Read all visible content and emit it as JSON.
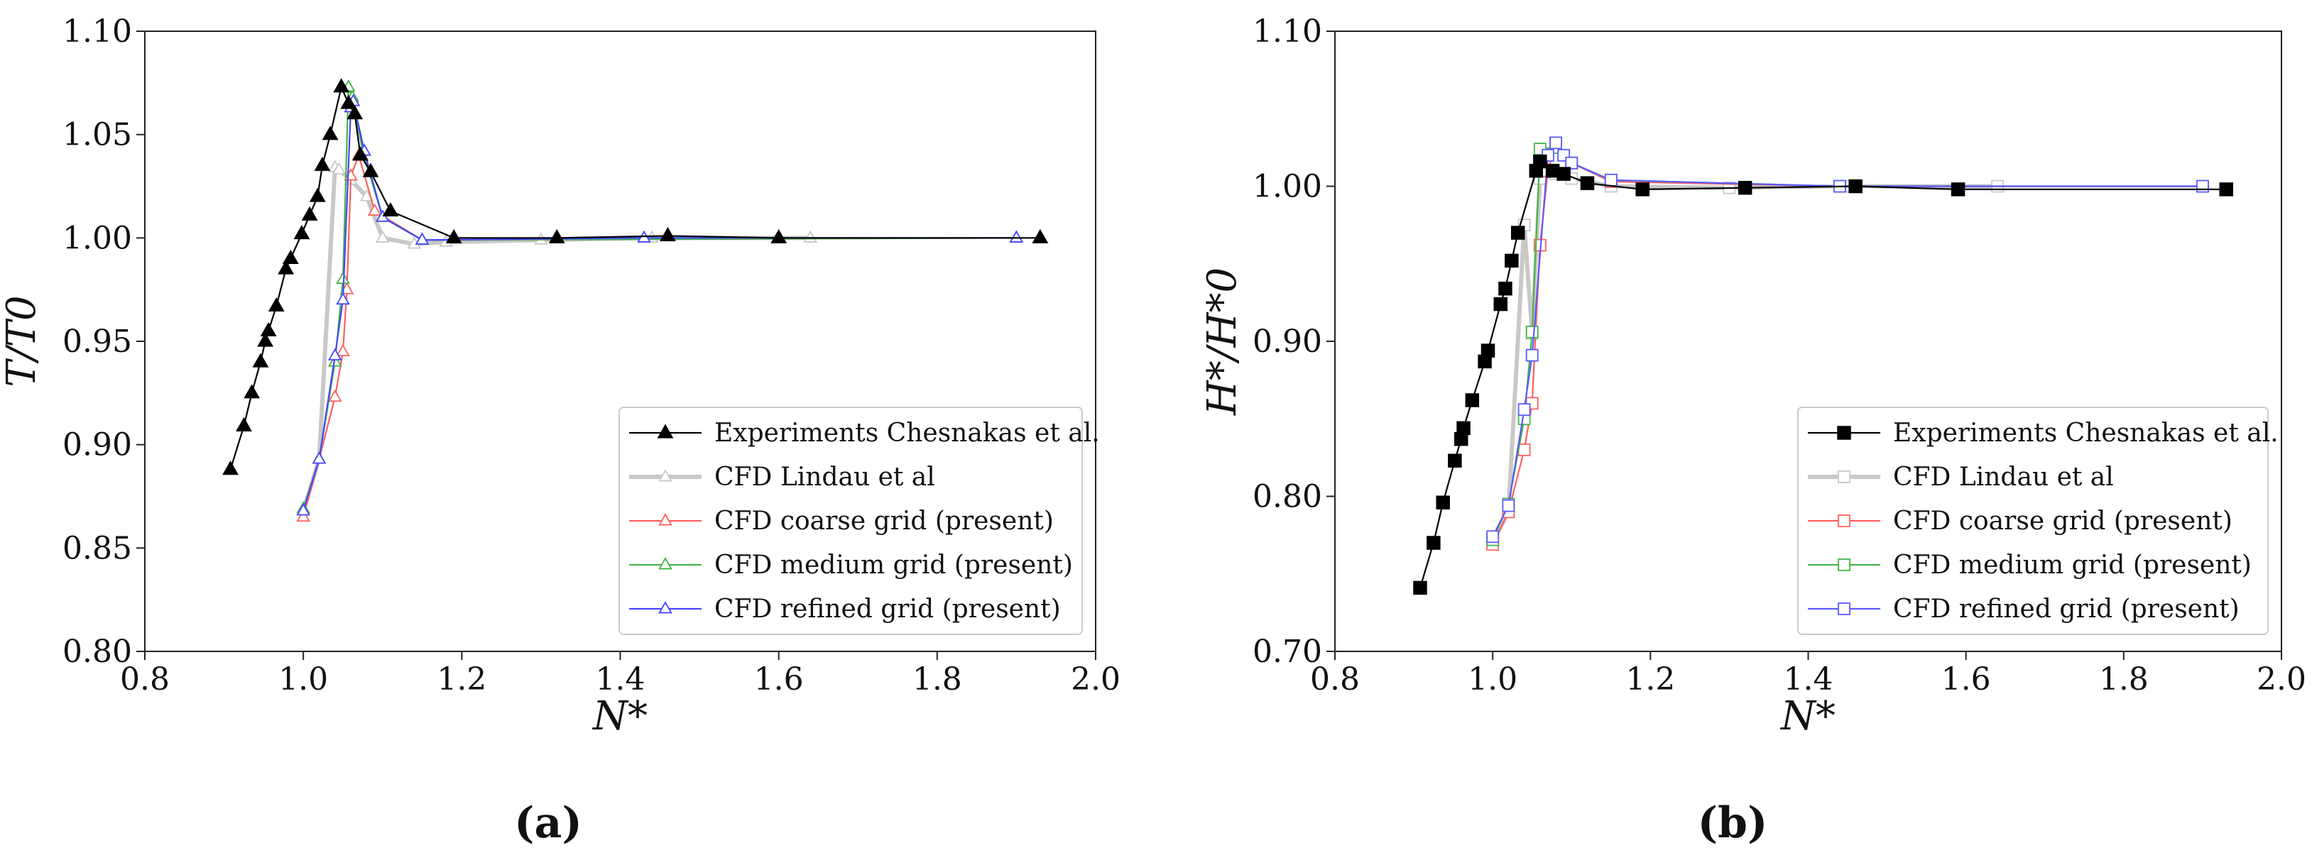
{
  "chart_data": [
    {
      "type": "line",
      "panel_label": "(a)",
      "xlabel": "N*",
      "ylabel": "T/T0",
      "xlim": [
        0.8,
        2.0
      ],
      "ylim": [
        0.8,
        1.1
      ],
      "xticks": [
        "0.8",
        "1.0",
        "1.2",
        "1.4",
        "1.6",
        "1.8",
        "2.0"
      ],
      "yticks": [
        "0.80",
        "0.85",
        "0.90",
        "0.95",
        "1.00",
        "1.05",
        "1.10"
      ],
      "legend_position": "lower-right",
      "series": [
        {
          "name": "Experiments Chesnakas et al.",
          "color": "#000000",
          "marker": "triangle-filled",
          "x": [
            0.908,
            0.925,
            0.935,
            0.946,
            0.952,
            0.956,
            0.966,
            0.978,
            0.984,
            0.998,
            1.008,
            1.018,
            1.024,
            1.034,
            1.048,
            1.057,
            1.065,
            1.072,
            1.085,
            1.11,
            1.19,
            1.32,
            1.46,
            1.6,
            1.93
          ],
          "y": [
            0.888,
            0.909,
            0.925,
            0.94,
            0.95,
            0.955,
            0.967,
            0.985,
            0.99,
            1.002,
            1.011,
            1.02,
            1.035,
            1.05,
            1.073,
            1.065,
            1.06,
            1.04,
            1.032,
            1.013,
            1.0,
            1.0,
            1.001,
            1.0,
            1.0
          ]
        },
        {
          "name": "CFD Lindau et al",
          "color": "#c8c8c8",
          "marker": "triangle-open",
          "x": [
            1.0,
            1.02,
            1.04,
            1.045,
            1.06,
            1.08,
            1.1,
            1.14,
            1.18,
            1.3,
            1.44,
            1.64
          ],
          "y": [
            0.868,
            0.893,
            1.034,
            1.033,
            1.028,
            1.02,
            1.0,
            0.997,
            0.998,
            0.999,
            1.0,
            1.0
          ]
        },
        {
          "name": "CFD coarse grid (present)",
          "color": "#ff6060",
          "marker": "triangle-open",
          "x": [
            1.0,
            1.02,
            1.04,
            1.05,
            1.055,
            1.06,
            1.07,
            1.09,
            1.15,
            1.9
          ],
          "y": [
            0.865,
            0.893,
            0.923,
            0.945,
            0.975,
            1.03,
            1.04,
            1.013,
            0.999,
            1.0
          ]
        },
        {
          "name": "CFD medium grid (present)",
          "color": "#46b446",
          "marker": "triangle-open",
          "x": [
            1.0,
            1.02,
            1.04,
            1.05,
            1.057,
            1.062,
            1.075,
            1.1,
            1.15,
            1.9
          ],
          "y": [
            0.869,
            0.893,
            0.94,
            0.98,
            1.073,
            1.068,
            1.042,
            1.01,
            0.999,
            1.0
          ]
        },
        {
          "name": "CFD refined grid (present)",
          "color": "#4646ff",
          "marker": "triangle-open",
          "x": [
            1.0,
            1.02,
            1.04,
            1.05,
            1.06,
            1.063,
            1.077,
            1.1,
            1.15,
            1.43,
            1.9
          ],
          "y": [
            0.868,
            0.893,
            0.943,
            0.97,
            1.063,
            1.066,
            1.042,
            1.01,
            0.999,
            1.0,
            1.0
          ]
        }
      ]
    },
    {
      "type": "line",
      "panel_label": "(b)",
      "xlabel": "N*",
      "ylabel": "H*/H*0",
      "xlim": [
        0.8,
        2.0
      ],
      "ylim": [
        0.7,
        1.1
      ],
      "xticks": [
        "0.8",
        "1.0",
        "1.2",
        "1.4",
        "1.6",
        "1.8",
        "2.0"
      ],
      "yticks": [
        "0.70",
        "0.80",
        "0.90",
        "1.00",
        "1.10"
      ],
      "legend_position": "lower-right",
      "series": [
        {
          "name": "Experiments Chesnakas et al.",
          "color": "#000000",
          "marker": "square-filled",
          "x": [
            0.908,
            0.925,
            0.937,
            0.952,
            0.96,
            0.963,
            0.974,
            0.99,
            0.994,
            1.01,
            1.016,
            1.024,
            1.032,
            1.055,
            1.06,
            1.076,
            1.09,
            1.12,
            1.19,
            1.32,
            1.46,
            1.59,
            1.93
          ],
          "y": [
            0.741,
            0.77,
            0.796,
            0.823,
            0.837,
            0.844,
            0.862,
            0.887,
            0.894,
            0.924,
            0.934,
            0.952,
            0.97,
            1.01,
            1.016,
            1.01,
            1.008,
            1.002,
            0.998,
            0.999,
            1.0,
            0.998,
            0.998
          ]
        },
        {
          "name": "CFD Lindau et al",
          "color": "#c8c8c8",
          "marker": "square-open",
          "x": [
            1.0,
            1.02,
            1.04,
            1.05,
            1.06,
            1.08,
            1.1,
            1.15,
            1.3,
            1.45,
            1.64
          ],
          "y": [
            0.77,
            0.79,
            0.975,
            0.905,
            1.005,
            1.008,
            1.005,
            1.0,
            0.999,
            1.0,
            1.0
          ]
        },
        {
          "name": "CFD coarse grid (present)",
          "color": "#ff6060",
          "marker": "square-open",
          "x": [
            1.0,
            1.02,
            1.04,
            1.05,
            1.06,
            1.07,
            1.08,
            1.1,
            1.15,
            1.44,
            1.9
          ],
          "y": [
            0.769,
            0.79,
            0.83,
            0.86,
            0.962,
            1.01,
            1.027,
            1.015,
            1.003,
            1.0,
            1.0
          ]
        },
        {
          "name": "CFD medium grid (present)",
          "color": "#46b446",
          "marker": "square-open",
          "x": [
            1.0,
            1.02,
            1.04,
            1.05,
            1.06,
            1.08,
            1.1,
            1.15,
            1.44,
            1.9
          ],
          "y": [
            0.772,
            0.795,
            0.85,
            0.906,
            1.024,
            1.025,
            1.015,
            1.004,
            1.0,
            1.0
          ]
        },
        {
          "name": "CFD refined grid (present)",
          "color": "#5a5aff",
          "marker": "square-open",
          "x": [
            1.0,
            1.02,
            1.04,
            1.05,
            1.07,
            1.08,
            1.09,
            1.1,
            1.15,
            1.44,
            1.9
          ],
          "y": [
            0.774,
            0.794,
            0.856,
            0.891,
            1.02,
            1.028,
            1.02,
            1.015,
            1.004,
            1.0,
            1.0
          ]
        }
      ]
    }
  ]
}
